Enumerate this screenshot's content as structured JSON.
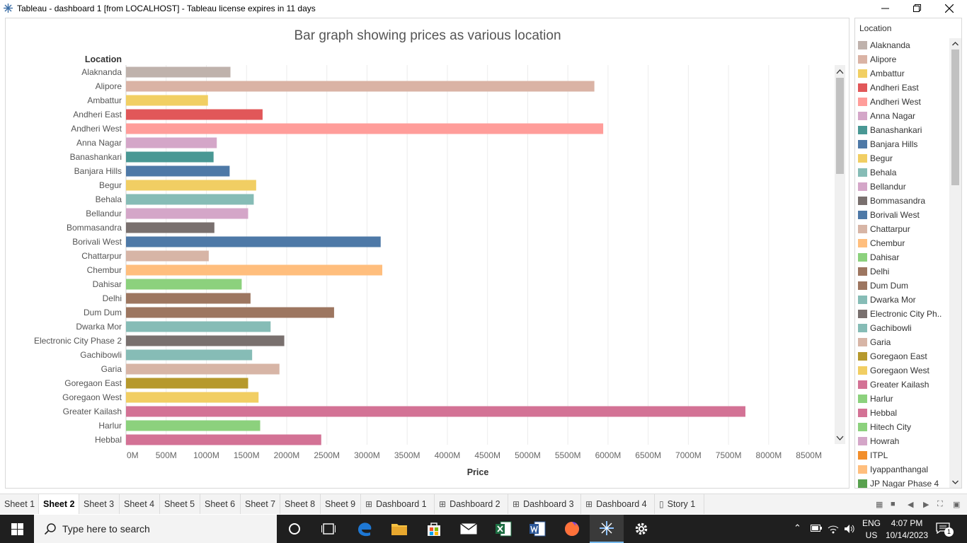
{
  "window": {
    "title": "Tableau - dashboard 1 [from LOCALHOST] - Tableau license expires in 11 days"
  },
  "chart_data": {
    "type": "bar",
    "orientation": "horizontal",
    "title": "Bar graph showing prices as various  location",
    "row_header": "Location",
    "xlabel": "Price",
    "ylabel": "Location",
    "xlim": [
      0,
      8750
    ],
    "x_ticks": [
      "0M",
      "500M",
      "1000M",
      "1500M",
      "2000M",
      "2500M",
      "3000M",
      "3500M",
      "4000M",
      "4500M",
      "5000M",
      "5500M",
      "6000M",
      "6500M",
      "7000M",
      "7500M",
      "8000M",
      "8500M"
    ],
    "categories": [
      "Alaknanda",
      "Alipore",
      "Ambattur",
      "Andheri East",
      "Andheri West",
      "Anna Nagar",
      "Banashankari",
      "Banjara Hills",
      "Begur",
      "Behala",
      "Bellandur",
      "Bommasandra",
      "Borivali West",
      "Chattarpur",
      "Chembur",
      "Dahisar",
      "Delhi",
      "Dum Dum",
      "Dwarka Mor",
      "Electronic City Phase 2",
      "Gachibowli",
      "Garia",
      "Goregaon East",
      "Goregaon West",
      "Greater Kailash",
      "Harlur",
      "Hebbal"
    ],
    "values": [
      1300,
      5830,
      1020,
      1700,
      5940,
      1130,
      1090,
      1290,
      1620,
      1590,
      1520,
      1100,
      3170,
      1030,
      3190,
      1440,
      1550,
      2590,
      1800,
      1970,
      1570,
      1910,
      1520,
      1650,
      7710,
      1670,
      2430
    ],
    "colors": [
      "#bfb2ac",
      "#dab3a5",
      "#f1cf63",
      "#e15759",
      "#ff9d9a",
      "#d4a6c8",
      "#499894",
      "#4e79a7",
      "#f1ce63",
      "#86bcb6",
      "#d4a6c8",
      "#79706e",
      "#4e79a7",
      "#d7b5a6",
      "#ffbe7d",
      "#8cd17d",
      "#9d7660",
      "#9d7660",
      "#86bcb6",
      "#79706e",
      "#86bcb6",
      "#d7b5a6",
      "#b6992d",
      "#f1ce63",
      "#d37295",
      "#8cd17d",
      "#d37295"
    ]
  },
  "legend": {
    "title": "Location",
    "items": [
      {
        "label": "Alaknanda",
        "color": "#bfb2ac"
      },
      {
        "label": "Alipore",
        "color": "#dab3a5"
      },
      {
        "label": "Ambattur",
        "color": "#f1cf63"
      },
      {
        "label": "Andheri East",
        "color": "#e15759"
      },
      {
        "label": "Andheri West",
        "color": "#ff9d9a"
      },
      {
        "label": "Anna Nagar",
        "color": "#d4a6c8"
      },
      {
        "label": "Banashankari",
        "color": "#499894"
      },
      {
        "label": "Banjara Hills",
        "color": "#4e79a7"
      },
      {
        "label": "Begur",
        "color": "#f1ce63"
      },
      {
        "label": "Behala",
        "color": "#86bcb6"
      },
      {
        "label": "Bellandur",
        "color": "#d4a6c8"
      },
      {
        "label": "Bommasandra",
        "color": "#79706e"
      },
      {
        "label": "Borivali West",
        "color": "#4e79a7"
      },
      {
        "label": "Chattarpur",
        "color": "#d7b5a6"
      },
      {
        "label": "Chembur",
        "color": "#ffbe7d"
      },
      {
        "label": "Dahisar",
        "color": "#8cd17d"
      },
      {
        "label": "Delhi",
        "color": "#9d7660"
      },
      {
        "label": "Dum Dum",
        "color": "#9d7660"
      },
      {
        "label": "Dwarka Mor",
        "color": "#86bcb6"
      },
      {
        "label": "Electronic City Ph..",
        "color": "#79706e"
      },
      {
        "label": "Gachibowli",
        "color": "#86bcb6"
      },
      {
        "label": "Garia",
        "color": "#d7b5a6"
      },
      {
        "label": "Goregaon East",
        "color": "#b6992d"
      },
      {
        "label": "Goregaon West",
        "color": "#f1ce63"
      },
      {
        "label": "Greater Kailash",
        "color": "#d37295"
      },
      {
        "label": "Harlur",
        "color": "#8cd17d"
      },
      {
        "label": "Hebbal",
        "color": "#d37295"
      },
      {
        "label": "Hitech City",
        "color": "#8cd17d"
      },
      {
        "label": "Howrah",
        "color": "#d4a6c8"
      },
      {
        "label": "ITPL",
        "color": "#f28e2b"
      },
      {
        "label": "Iyappanthangal",
        "color": "#ffbe7d"
      },
      {
        "label": "JP Nagar Phase 4",
        "color": "#59a14f"
      }
    ]
  },
  "tabs": [
    {
      "label": "Sheet 1",
      "kind": "sheet"
    },
    {
      "label": "Sheet 2",
      "kind": "sheet",
      "active": true
    },
    {
      "label": "Sheet 3",
      "kind": "sheet"
    },
    {
      "label": "Sheet 4",
      "kind": "sheet"
    },
    {
      "label": "Sheet 5",
      "kind": "sheet"
    },
    {
      "label": "Sheet 6",
      "kind": "sheet"
    },
    {
      "label": "Sheet 7",
      "kind": "sheet"
    },
    {
      "label": "Sheet 8",
      "kind": "sheet"
    },
    {
      "label": "Sheet 9",
      "kind": "sheet"
    },
    {
      "label": "Dashboard 1",
      "kind": "dashboard"
    },
    {
      "label": "Dashboard 2",
      "kind": "dashboard"
    },
    {
      "label": "Dashboard 3",
      "kind": "dashboard"
    },
    {
      "label": "Dashboard 4",
      "kind": "dashboard"
    },
    {
      "label": "Story 1",
      "kind": "story"
    }
  ],
  "taskbar": {
    "search_placeholder": "Type here to search",
    "lang_top": "ENG",
    "lang_bottom": "US",
    "time": "4:07 PM",
    "date": "10/14/2023",
    "notification_count": "1"
  }
}
